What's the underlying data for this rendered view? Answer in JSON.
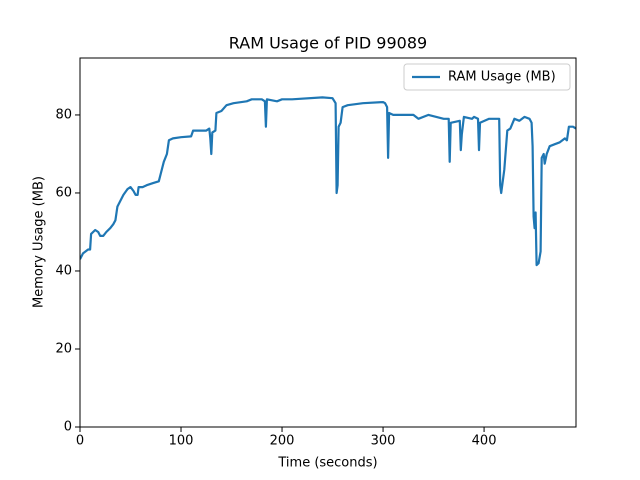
{
  "chart_data": {
    "type": "line",
    "title": "RAM Usage of PID 99089",
    "xlabel": "Time (seconds)",
    "ylabel": "Memory Usage (MB)",
    "xlim": [
      0,
      491
    ],
    "ylim": [
      0,
      94.6
    ],
    "xticks": [
      0,
      100,
      200,
      300,
      400
    ],
    "yticks": [
      0,
      20,
      40,
      60,
      80
    ],
    "legend": "upper right",
    "series": [
      {
        "name": "RAM Usage (MB)",
        "color": "#1f77b4",
        "x": [
          0,
          3,
          8,
          10,
          11,
          15,
          18,
          20,
          23,
          26,
          30,
          33,
          35,
          37,
          40,
          43,
          47,
          50,
          53,
          55,
          57,
          58,
          62,
          66,
          72,
          78,
          80,
          83,
          86,
          88,
          92,
          100,
          110,
          112,
          125,
          128,
          129,
          130,
          131,
          134,
          135,
          140,
          145,
          152,
          165,
          170,
          180,
          183,
          184,
          185,
          195,
          200,
          210,
          240,
          250,
          253,
          254,
          255,
          256,
          258,
          260,
          265,
          280,
          300,
          302,
          304,
          305,
          306,
          310,
          330,
          335,
          345,
          360,
          365,
          366,
          367,
          376,
          377,
          378,
          380,
          388,
          390,
          394,
          395,
          396,
          405,
          415,
          416,
          417,
          420,
          423,
          426,
          430,
          435,
          440,
          445,
          447,
          448,
          449,
          450,
          451,
          452,
          454,
          456,
          457,
          459,
          460,
          462,
          465,
          470,
          475,
          480,
          482,
          484,
          488,
          491
        ],
        "values": [
          43,
          44.5,
          45.5,
          45.5,
          49.5,
          50.5,
          50,
          49,
          49,
          50,
          51,
          52,
          53,
          56.5,
          58,
          59.5,
          61,
          61.5,
          60.5,
          59.5,
          59.5,
          61.5,
          61.5,
          62,
          62.5,
          63,
          65,
          68,
          70,
          73.5,
          74,
          74.3,
          74.5,
          76,
          76,
          76.5,
          74,
          70,
          75.5,
          76,
          80.5,
          81,
          82.5,
          83,
          83.5,
          84,
          84,
          83.5,
          77,
          84,
          83.5,
          84,
          84,
          84.5,
          84.3,
          83,
          60,
          62,
          77,
          78,
          82,
          82.5,
          83,
          83.3,
          83,
          82,
          69,
          80.5,
          80,
          80,
          79,
          80,
          79,
          79,
          68,
          78,
          78.5,
          71,
          75,
          79.5,
          79,
          79.5,
          79,
          71,
          78,
          79,
          79,
          62,
          60,
          66,
          76,
          76.5,
          79,
          78.5,
          79.5,
          79,
          78,
          72,
          54,
          51,
          55,
          41.5,
          42,
          45,
          69,
          70,
          67.5,
          70,
          72,
          72.5,
          73,
          74,
          73.5,
          77,
          77,
          76.5
        ]
      }
    ]
  }
}
